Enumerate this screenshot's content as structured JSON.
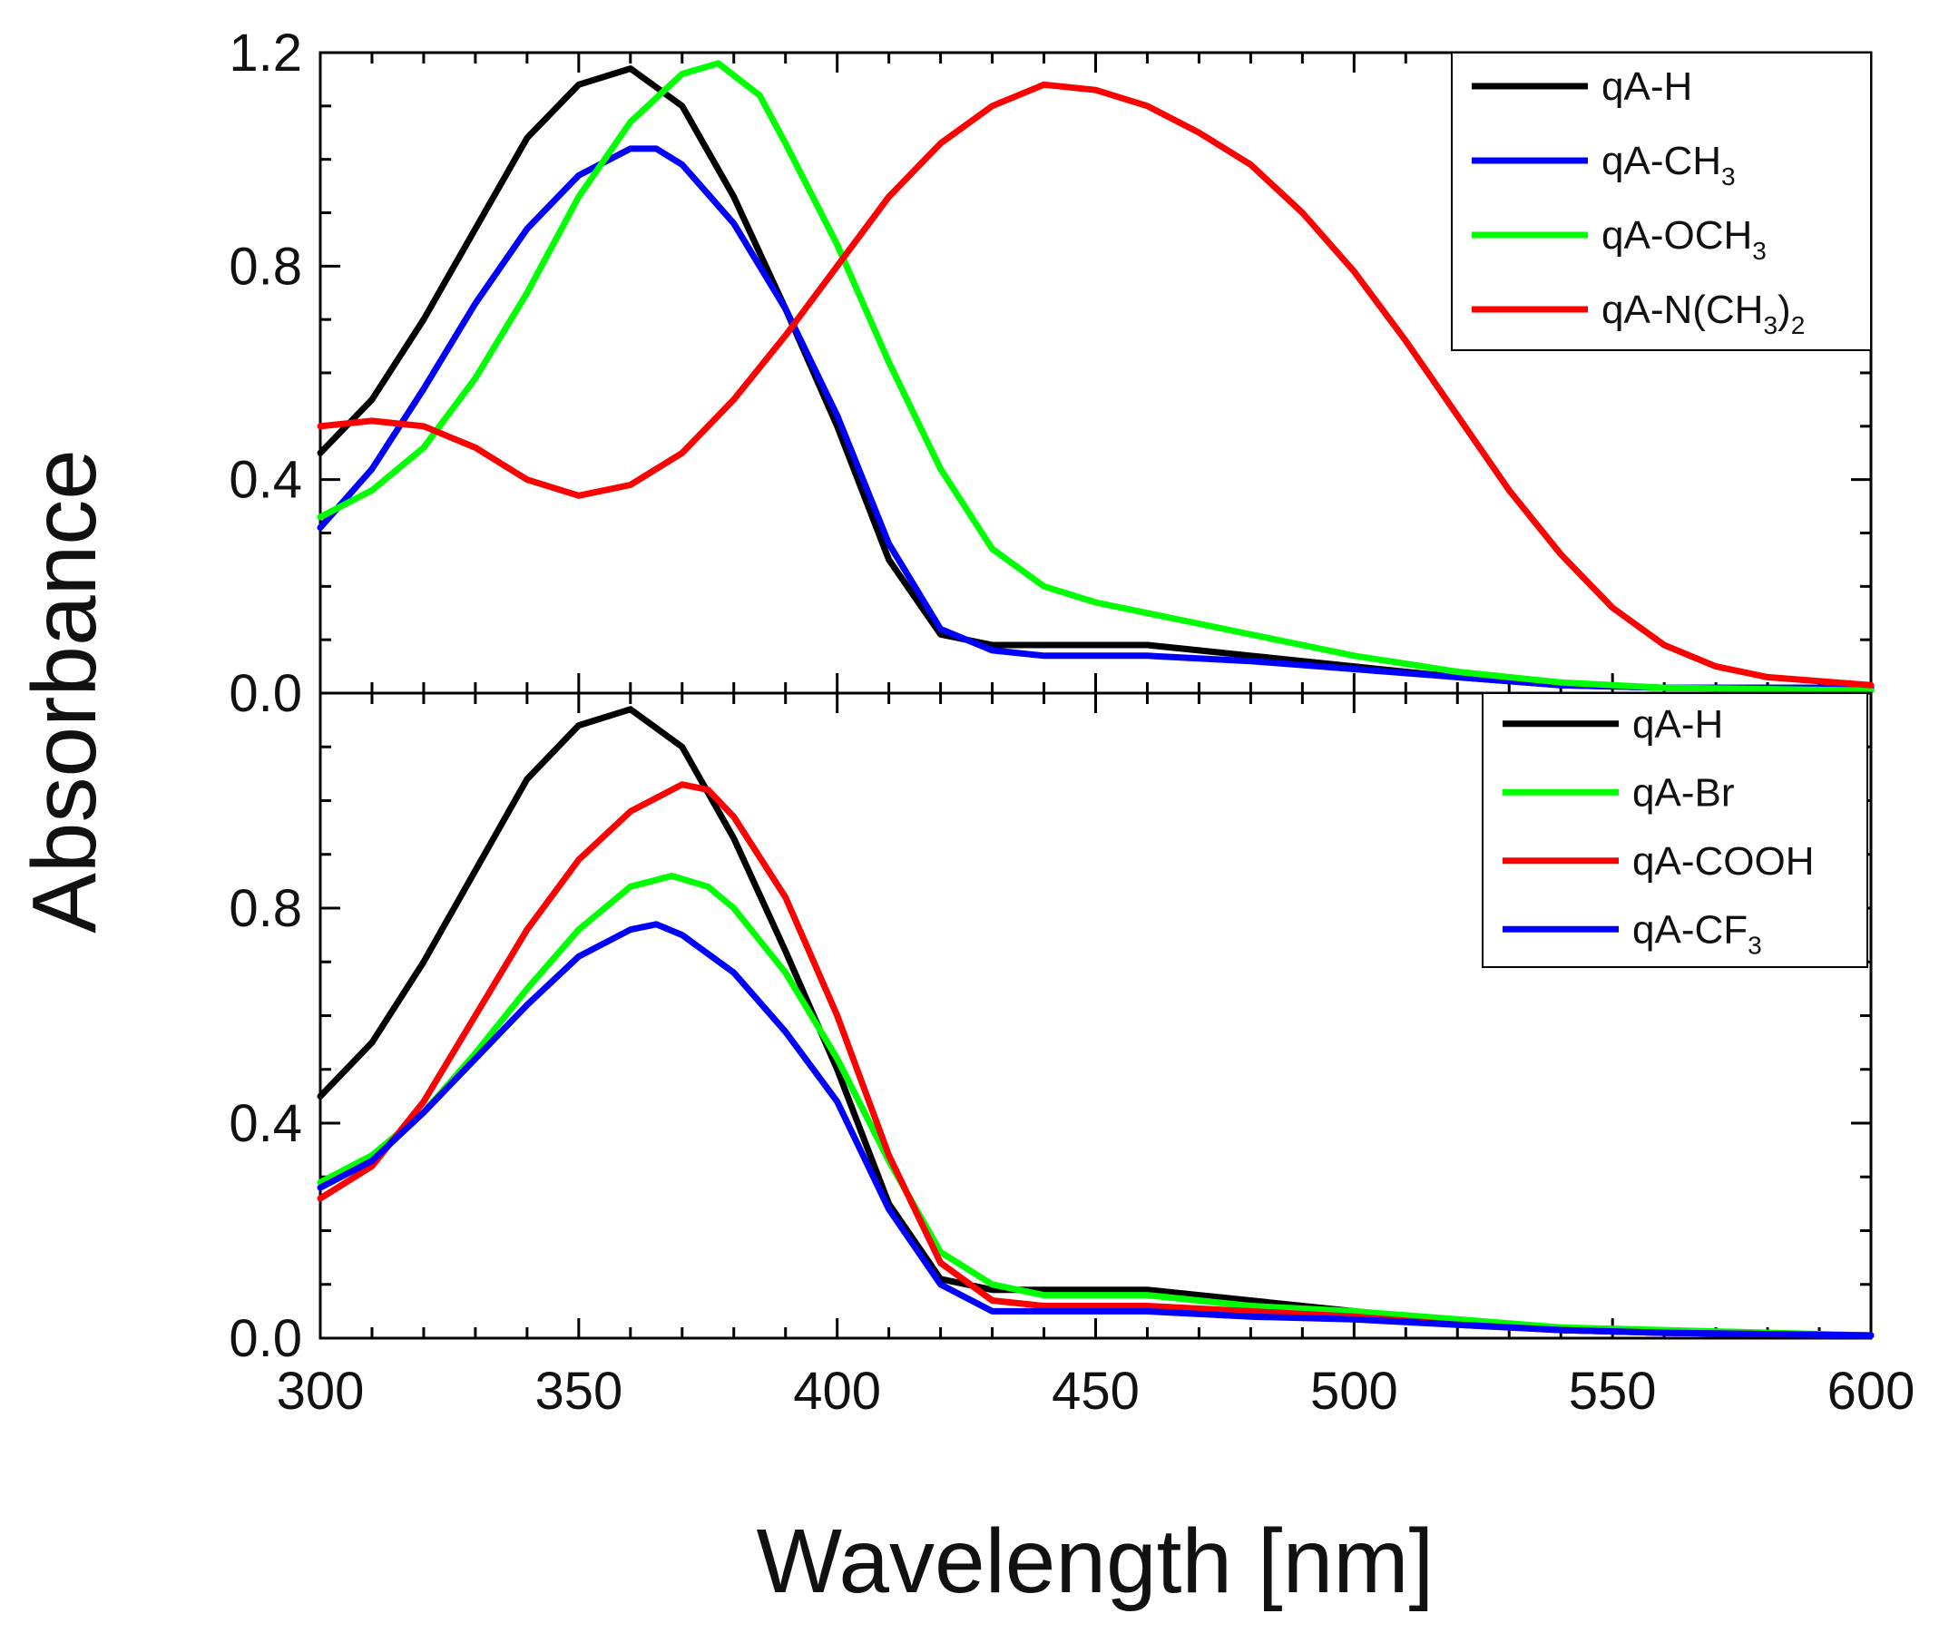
{
  "chart_data": [
    {
      "type": "line",
      "panel": "top",
      "xlabel": "Wavelength [nm]",
      "ylabel": "Absorbance",
      "xlim": [
        300,
        600
      ],
      "ylim": [
        0,
        1.2
      ],
      "xticks": [
        "300",
        "350",
        "400",
        "450",
        "500",
        "550",
        "600"
      ],
      "yticks": [
        "0.0",
        "0.4",
        "0.8",
        "1.2"
      ],
      "legend_position": "top-right",
      "series": [
        {
          "name": "qA-H",
          "label_base": "qA-H",
          "label_sub": "",
          "label_tail": "",
          "color": "#000000",
          "x": [
            300,
            310,
            320,
            330,
            340,
            350,
            360,
            370,
            380,
            390,
            400,
            410,
            420,
            430,
            440,
            450,
            460,
            470,
            480,
            490,
            500,
            520,
            540,
            560,
            600
          ],
          "y": [
            0.45,
            0.55,
            0.7,
            0.87,
            1.04,
            1.14,
            1.17,
            1.1,
            0.93,
            0.72,
            0.5,
            0.25,
            0.11,
            0.09,
            0.09,
            0.09,
            0.09,
            0.08,
            0.07,
            0.06,
            0.05,
            0.03,
            0.015,
            0.01,
            0.01
          ]
        },
        {
          "name": "qA-CH3",
          "label_base": "qA-CH",
          "label_sub": "3",
          "label_tail": "",
          "color": "#0000ff",
          "x": [
            300,
            310,
            320,
            330,
            340,
            350,
            360,
            365,
            370,
            380,
            390,
            400,
            410,
            420,
            430,
            440,
            460,
            480,
            500,
            520,
            540,
            560,
            600
          ],
          "y": [
            0.31,
            0.42,
            0.57,
            0.73,
            0.87,
            0.97,
            1.02,
            1.02,
            0.99,
            0.88,
            0.72,
            0.52,
            0.28,
            0.12,
            0.08,
            0.07,
            0.07,
            0.06,
            0.045,
            0.03,
            0.015,
            0.01,
            0.01
          ]
        },
        {
          "name": "qA-OCH3",
          "label_base": "qA-OCH",
          "label_sub": "3",
          "label_tail": "",
          "color": "#00ff00",
          "x": [
            300,
            310,
            320,
            330,
            340,
            350,
            360,
            370,
            377,
            385,
            390,
            400,
            410,
            420,
            430,
            440,
            450,
            460,
            470,
            480,
            490,
            500,
            520,
            540,
            560,
            600
          ],
          "y": [
            0.33,
            0.38,
            0.46,
            0.59,
            0.75,
            0.93,
            1.07,
            1.16,
            1.18,
            1.12,
            1.03,
            0.84,
            0.62,
            0.42,
            0.27,
            0.2,
            0.17,
            0.15,
            0.13,
            0.11,
            0.09,
            0.07,
            0.04,
            0.02,
            0.01,
            0.005
          ]
        },
        {
          "name": "qA-N(CH3)2",
          "label_base": "qA-N(CH",
          "label_sub": "3",
          "label_tail": ")",
          "label_sub2": "2",
          "color": "#ff0000",
          "x": [
            300,
            310,
            320,
            330,
            340,
            350,
            360,
            370,
            380,
            390,
            400,
            410,
            420,
            430,
            440,
            450,
            460,
            470,
            480,
            490,
            500,
            510,
            520,
            530,
            540,
            550,
            560,
            570,
            580,
            600
          ],
          "y": [
            0.5,
            0.51,
            0.5,
            0.46,
            0.4,
            0.37,
            0.39,
            0.45,
            0.55,
            0.67,
            0.8,
            0.93,
            1.03,
            1.1,
            1.14,
            1.13,
            1.1,
            1.05,
            0.99,
            0.9,
            0.79,
            0.66,
            0.52,
            0.38,
            0.26,
            0.16,
            0.09,
            0.05,
            0.03,
            0.015
          ]
        }
      ]
    },
    {
      "type": "line",
      "panel": "bottom",
      "xlabel": "Wavelength [nm]",
      "ylabel": "Absorbance",
      "xlim": [
        300,
        600
      ],
      "ylim": [
        0,
        1.2
      ],
      "xticks": [
        "300",
        "350",
        "400",
        "450",
        "500",
        "550",
        "600"
      ],
      "yticks": [
        "0.0",
        "0.4",
        "0.8"
      ],
      "legend_position": "top-right",
      "series": [
        {
          "name": "qA-H",
          "label_base": "qA-H",
          "label_sub": "",
          "label_tail": "",
          "color": "#000000",
          "x": [
            300,
            310,
            320,
            330,
            340,
            350,
            360,
            370,
            380,
            390,
            400,
            410,
            420,
            430,
            440,
            450,
            460,
            470,
            480,
            490,
            500,
            520,
            540,
            560,
            600
          ],
          "y": [
            0.45,
            0.55,
            0.7,
            0.87,
            1.04,
            1.14,
            1.17,
            1.1,
            0.93,
            0.72,
            0.5,
            0.25,
            0.11,
            0.09,
            0.09,
            0.09,
            0.09,
            0.08,
            0.07,
            0.06,
            0.05,
            0.03,
            0.015,
            0.01,
            0.005
          ]
        },
        {
          "name": "qA-Br",
          "label_base": "qA-Br",
          "label_sub": "",
          "label_tail": "",
          "color": "#00ff00",
          "x": [
            300,
            310,
            320,
            330,
            340,
            350,
            360,
            368,
            375,
            380,
            390,
            400,
            410,
            420,
            430,
            440,
            460,
            480,
            500,
            520,
            540,
            560,
            600
          ],
          "y": [
            0.29,
            0.34,
            0.42,
            0.53,
            0.65,
            0.76,
            0.84,
            0.86,
            0.84,
            0.8,
            0.68,
            0.52,
            0.33,
            0.16,
            0.1,
            0.08,
            0.08,
            0.06,
            0.05,
            0.035,
            0.02,
            0.015,
            0.005
          ]
        },
        {
          "name": "qA-COOH",
          "label_base": "qA-COOH",
          "label_sub": "",
          "label_tail": "",
          "color": "#ff0000",
          "x": [
            300,
            310,
            320,
            330,
            340,
            350,
            360,
            370,
            375,
            380,
            390,
            400,
            410,
            420,
            430,
            440,
            460,
            480,
            500,
            520,
            540,
            560,
            600
          ],
          "y": [
            0.26,
            0.32,
            0.44,
            0.6,
            0.76,
            0.89,
            0.98,
            1.03,
            1.02,
            0.97,
            0.82,
            0.6,
            0.34,
            0.14,
            0.07,
            0.06,
            0.06,
            0.05,
            0.04,
            0.025,
            0.015,
            0.01,
            0.005
          ]
        },
        {
          "name": "qA-CF3",
          "label_base": "qA-CF",
          "label_sub": "3",
          "label_tail": "",
          "color": "#0000ff",
          "x": [
            300,
            310,
            320,
            330,
            340,
            350,
            360,
            365,
            370,
            380,
            390,
            400,
            410,
            420,
            430,
            440,
            460,
            480,
            500,
            520,
            540,
            560,
            600
          ],
          "y": [
            0.28,
            0.33,
            0.42,
            0.52,
            0.62,
            0.71,
            0.76,
            0.77,
            0.75,
            0.68,
            0.57,
            0.44,
            0.24,
            0.1,
            0.05,
            0.05,
            0.05,
            0.04,
            0.035,
            0.025,
            0.015,
            0.01,
            0.005
          ]
        }
      ]
    }
  ]
}
